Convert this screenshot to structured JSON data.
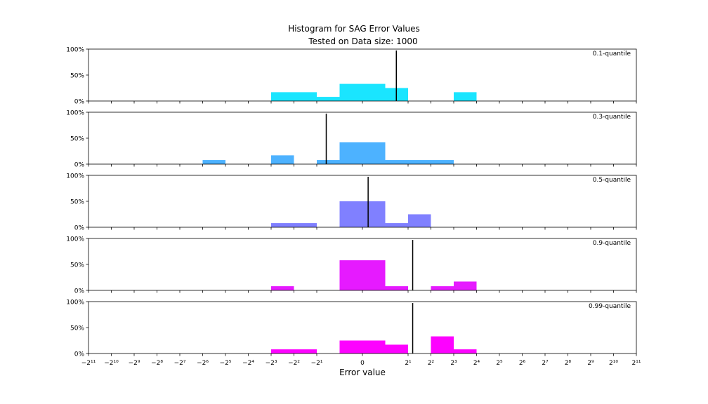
{
  "chart_data": {
    "type": "bar",
    "title": "Histogram for SAG Error Values",
    "subtitle": "Tested on Data size: 1000",
    "xlabel": "Error value",
    "ylabel": "",
    "y_tick_labels": [
      "0%",
      "50%",
      "100%"
    ],
    "ylim": [
      0,
      1
    ],
    "x_scale": "symmetric-log2",
    "xlim": [
      -2048,
      2048
    ],
    "x_ticks": [
      {
        "value": -2048,
        "label": "−2¹¹"
      },
      {
        "value": -1024,
        "label": "−2¹⁰"
      },
      {
        "value": -512,
        "label": "−2⁹"
      },
      {
        "value": -256,
        "label": "−2⁸"
      },
      {
        "value": -128,
        "label": "−2⁷"
      },
      {
        "value": -64,
        "label": "−2⁶"
      },
      {
        "value": -32,
        "label": "−2⁵"
      },
      {
        "value": -16,
        "label": "−2⁴"
      },
      {
        "value": -8,
        "label": "−2³"
      },
      {
        "value": -4,
        "label": "−2²"
      },
      {
        "value": -2,
        "label": "−2¹"
      },
      {
        "value": 0,
        "label": "0"
      },
      {
        "value": 2,
        "label": "2¹"
      },
      {
        "value": 4,
        "label": "2²"
      },
      {
        "value": 8,
        "label": "2³"
      },
      {
        "value": 16,
        "label": "2⁴"
      },
      {
        "value": 32,
        "label": "2⁵"
      },
      {
        "value": 64,
        "label": "2⁶"
      },
      {
        "value": 128,
        "label": "2⁷"
      },
      {
        "value": 256,
        "label": "2⁸"
      },
      {
        "value": 512,
        "label": "2⁹"
      },
      {
        "value": 1024,
        "label": "2¹⁰"
      },
      {
        "value": 2048,
        "label": "2¹¹"
      }
    ],
    "grid": false,
    "panels": [
      {
        "name": "0.1-quantile",
        "color": "#1ae5ff",
        "marker": 1.4,
        "bins": [
          {
            "from": -8,
            "to": -2,
            "frac": 0.17
          },
          {
            "from": -2,
            "to": -1,
            "frac": 0.08
          },
          {
            "from": -1,
            "to": 1,
            "frac": 0.33
          },
          {
            "from": 1,
            "to": 2,
            "frac": 0.25
          },
          {
            "from": 8,
            "to": 16,
            "frac": 0.17
          }
        ]
      },
      {
        "name": "0.3-quantile",
        "color": "#4db2ff",
        "marker": -1.5,
        "bins": [
          {
            "from": -64,
            "to": -32,
            "frac": 0.08
          },
          {
            "from": -8,
            "to": -4,
            "frac": 0.17
          },
          {
            "from": -2,
            "to": -1,
            "frac": 0.08
          },
          {
            "from": -1,
            "to": 1,
            "frac": 0.42
          },
          {
            "from": 1,
            "to": 8,
            "frac": 0.08
          }
        ]
      },
      {
        "name": "0.5-quantile",
        "color": "#8080ff",
        "marker": 0.25,
        "bins": [
          {
            "from": -8,
            "to": -2,
            "frac": 0.08
          },
          {
            "from": -1,
            "to": 1,
            "frac": 0.5
          },
          {
            "from": 1,
            "to": 2,
            "frac": 0.08
          },
          {
            "from": 2,
            "to": 4,
            "frac": 0.25
          }
        ]
      },
      {
        "name": "0.9-quantile",
        "color": "#e61aff",
        "marker": 2.3,
        "bins": [
          {
            "from": -8,
            "to": -4,
            "frac": 0.08
          },
          {
            "from": -1,
            "to": 1,
            "frac": 0.58
          },
          {
            "from": 1,
            "to": 2,
            "frac": 0.08
          },
          {
            "from": 4,
            "to": 8,
            "frac": 0.08
          },
          {
            "from": 8,
            "to": 16,
            "frac": 0.17
          }
        ]
      },
      {
        "name": "0.99-quantile",
        "color": "#fd02ff",
        "marker": 2.3,
        "bins": [
          {
            "from": -8,
            "to": -2,
            "frac": 0.08
          },
          {
            "from": -1,
            "to": 1,
            "frac": 0.25
          },
          {
            "from": 1,
            "to": 2,
            "frac": 0.17
          },
          {
            "from": 4,
            "to": 8,
            "frac": 0.33
          },
          {
            "from": 8,
            "to": 16,
            "frac": 0.08
          }
        ]
      }
    ]
  }
}
